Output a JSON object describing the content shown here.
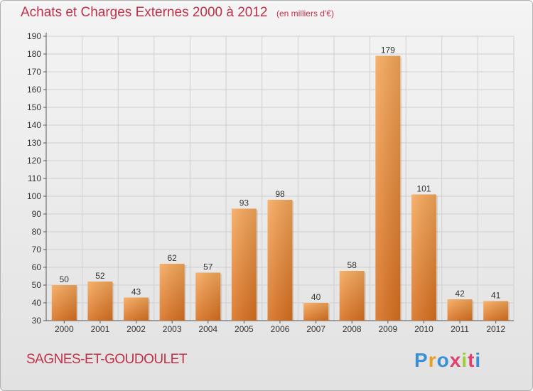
{
  "chart_data": {
    "type": "bar",
    "title": "Achats et Charges Externes 2000 à 2012",
    "unit_label": "(en milliers d'€)",
    "categories": [
      "2000",
      "2001",
      "2002",
      "2003",
      "2004",
      "2005",
      "2006",
      "2007",
      "2008",
      "2009",
      "2010",
      "2011",
      "2012"
    ],
    "values": [
      50,
      52,
      43,
      62,
      57,
      93,
      98,
      40,
      58,
      179,
      101,
      42,
      41
    ],
    "ylim": [
      30,
      190
    ],
    "yticks": [
      30,
      40,
      50,
      60,
      70,
      80,
      90,
      100,
      110,
      120,
      130,
      140,
      150,
      160,
      170,
      180,
      190
    ],
    "grid": true,
    "legend": "none",
    "bar_color": "#f0923a",
    "data_labels": true
  },
  "footer": {
    "commune": "SAGNES-ET-GOUDOULET",
    "logo_text": "Proxiti",
    "logo_colors": [
      "#3b8fd4",
      "#e8a020",
      "#3b8fd4",
      "#e04070",
      "#9acd32",
      "#e04070",
      "#3b8fd4"
    ]
  },
  "colors": {
    "title": "#c03048",
    "grid": "#cfcfcf",
    "axis": "#555555"
  }
}
